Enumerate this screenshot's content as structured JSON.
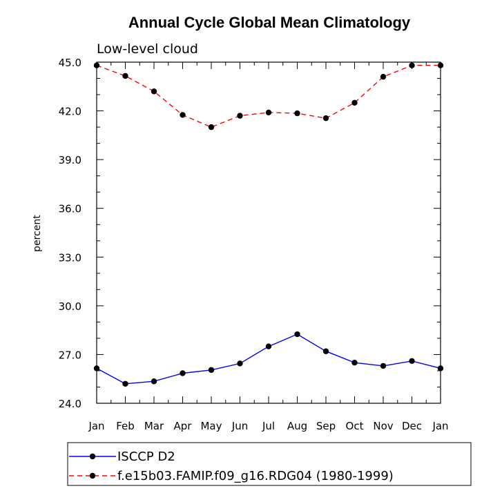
{
  "chart_data": {
    "type": "line",
    "title": "Annual Cycle Global Mean Climatology",
    "subtitle": "Low-level cloud",
    "xlabel": "",
    "ylabel": "percent",
    "ylim": [
      24.0,
      45.0
    ],
    "yticks": [
      "24.0",
      "27.0",
      "30.0",
      "33.0",
      "36.0",
      "39.0",
      "42.0",
      "45.0"
    ],
    "categories": [
      "Jan",
      "Feb",
      "Mar",
      "Apr",
      "May",
      "Jun",
      "Jul",
      "Aug",
      "Sep",
      "Oct",
      "Nov",
      "Dec",
      "Jan"
    ],
    "series": [
      {
        "name": "ISCCP D2",
        "color": "#0000ff",
        "dash": "solid",
        "values": [
          26.15,
          25.2,
          25.35,
          25.85,
          26.05,
          26.45,
          27.5,
          28.25,
          27.2,
          26.5,
          26.3,
          26.6,
          26.15
        ]
      },
      {
        "name": "f.e15b03.FAMIP.f09_g16.RDG04 (1980-1999)",
        "color": "#ff0000",
        "dash": "dashed",
        "values": [
          44.8,
          44.15,
          43.2,
          41.75,
          41.0,
          41.7,
          41.9,
          41.85,
          41.55,
          42.5,
          44.1,
          44.8,
          44.8
        ]
      }
    ]
  }
}
